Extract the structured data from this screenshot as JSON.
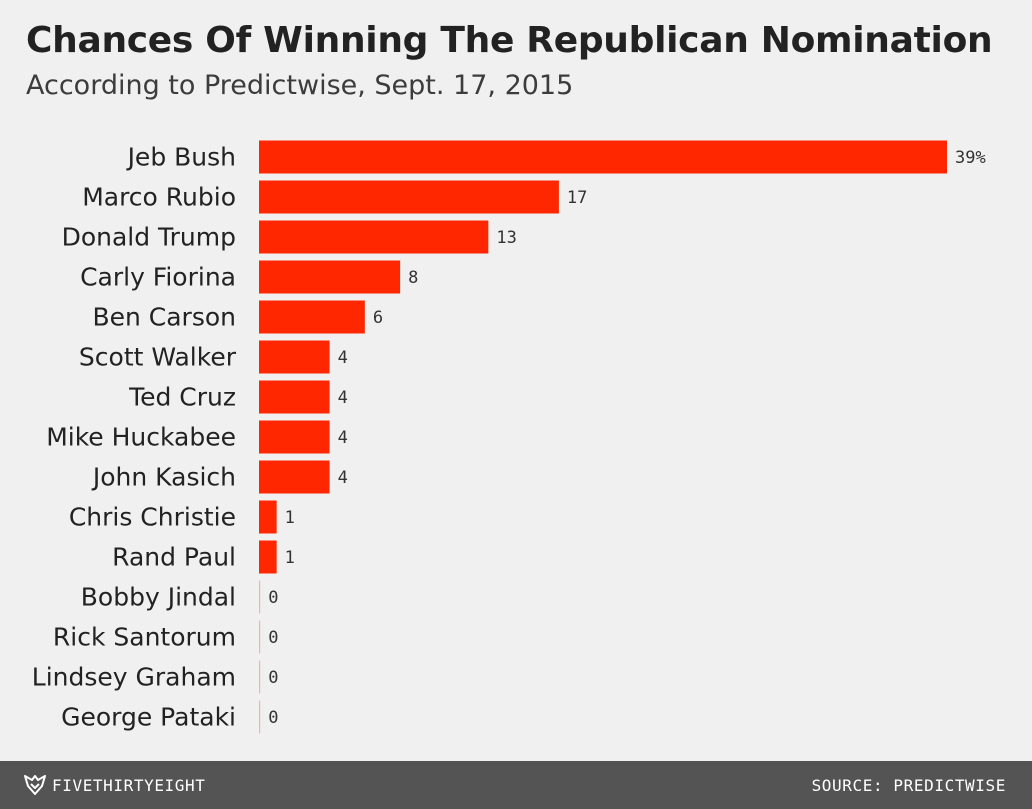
{
  "header": {
    "title": "Chances Of Winning The Republican Nomination",
    "subtitle": "According to Predictwise, Sept. 17, 2015"
  },
  "chart_data": {
    "type": "bar",
    "orientation": "horizontal",
    "title": "Chances Of Winning The Republican Nomination",
    "subtitle": "According to Predictwise, Sept. 17, 2015",
    "categories": [
      "Jeb Bush",
      "Marco Rubio",
      "Donald Trump",
      "Carly Fiorina",
      "Ben Carson",
      "Scott Walker",
      "Ted Cruz",
      "Mike Huckabee",
      "John Kasich",
      "Chris Christie",
      "Rand Paul",
      "Bobby Jindal",
      "Rick Santorum",
      "Lindsey Graham",
      "George Pataki"
    ],
    "values": [
      39,
      17,
      13,
      8,
      6,
      4,
      4,
      4,
      4,
      1,
      1,
      0,
      0,
      0,
      0
    ],
    "value_labels": [
      "39%",
      "17",
      "13",
      "8",
      "6",
      "4",
      "4",
      "4",
      "4",
      "1",
      "1",
      "0",
      "0",
      "0",
      "0"
    ],
    "unit": "%",
    "xlim": [
      0,
      39
    ],
    "xlabel": "",
    "ylabel": "",
    "grid": false,
    "legend": "none",
    "bar_color": "#ff2700"
  },
  "footer": {
    "brand": "FIVETHIRTYEIGHT",
    "logo_icon": "fivethirtyeight-fox-icon",
    "source": "SOURCE: PREDICTWISE"
  },
  "colors": {
    "background": "#f0f0f0",
    "bar": "#ff2700",
    "footer_background": "#545454",
    "footer_text": "#ffffff",
    "title_text": "#222222"
  }
}
